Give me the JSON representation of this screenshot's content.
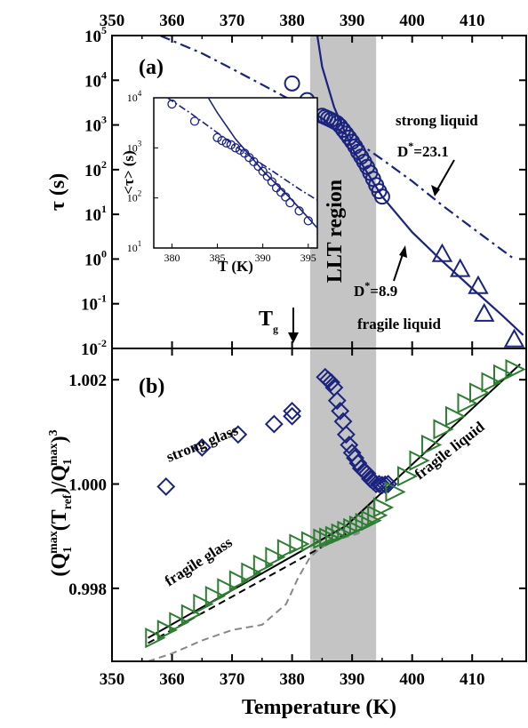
{
  "chart_data": [
    {
      "id": "a",
      "type": "scatter",
      "panel_label": "(a)",
      "xlabel": "",
      "ylabel": "τ (s)",
      "x_scale": "linear",
      "y_scale": "log",
      "xlim": [
        350,
        419
      ],
      "ylim": [
        0.01,
        100000
      ],
      "x_ticks": [
        "350",
        "360",
        "370",
        "380",
        "390",
        "400",
        "410"
      ],
      "y_ticks": [
        {
          "base": "10",
          "exp": "5",
          "value": 100000
        },
        {
          "base": "10",
          "exp": "4",
          "value": 10000
        },
        {
          "base": "10",
          "exp": "3",
          "value": 1000
        },
        {
          "base": "10",
          "exp": "2",
          "value": 100
        },
        {
          "base": "10",
          "exp": "1",
          "value": 10
        },
        {
          "base": "10",
          "exp": "0",
          "value": 1
        },
        {
          "base": "10",
          "exp": "-1",
          "value": 0.1
        },
        {
          "base": "10",
          "exp": "-2",
          "value": 0.01
        }
      ],
      "shaded_region": {
        "x": [
          383,
          394
        ],
        "label": "LLT region"
      },
      "series": [
        {
          "marker": "circle",
          "color": "#1a237e",
          "points": [
            [
              380,
              8500
            ],
            [
              382.5,
              3600
            ],
            [
              385,
              1600
            ],
            [
              385.5,
              1500
            ],
            [
              386,
              1400
            ],
            [
              386.5,
              1300
            ],
            [
              387,
              1200
            ],
            [
              387.5,
              1100
            ],
            [
              388,
              950
            ],
            [
              388.5,
              780
            ],
            [
              389,
              640
            ],
            [
              389.5,
              520
            ],
            [
              390,
              420
            ],
            [
              390.5,
              330
            ],
            [
              391,
              250
            ],
            [
              391.5,
              195
            ],
            [
              392,
              150
            ],
            [
              392.5,
              115
            ],
            [
              393,
              85
            ],
            [
              393.5,
              62
            ],
            [
              394,
              45
            ],
            [
              394.5,
              33
            ],
            [
              395,
              25
            ]
          ]
        },
        {
          "marker": "triangle",
          "color": "#1a237e",
          "points": [
            [
              405,
              1.3
            ],
            [
              408,
              0.6
            ],
            [
              411,
              0.25
            ],
            [
              412,
              0.06
            ],
            [
              417,
              0.016
            ]
          ]
        }
      ],
      "fits": [
        {
          "style": "solid",
          "color": "#1a237e",
          "points": [
            [
              384.2,
              100000
            ],
            [
              385,
              20000
            ],
            [
              387,
              2500
            ],
            [
              390,
              300
            ],
            [
              395,
              25
            ],
            [
              400,
              4
            ],
            [
              405,
              0.9
            ],
            [
              410,
              0.22
            ],
            [
              415,
              0.055
            ],
            [
              418.5,
              0.02
            ]
          ]
        },
        {
          "style": "dash-dot",
          "color": "#1a237e",
          "points": [
            [
              358,
              100000
            ],
            [
              365,
              40000
            ],
            [
              370,
              18000
            ],
            [
              375,
              8000
            ],
            [
              380,
              3500
            ],
            [
              385,
              1400
            ],
            [
              390,
              500
            ],
            [
              395,
              170
            ],
            [
              400,
              55
            ],
            [
              405,
              16
            ],
            [
              410,
              5
            ],
            [
              417,
              1
            ]
          ]
        }
      ],
      "annotations": [
        {
          "text": "strong liquid"
        },
        {
          "text": "D",
          "sup": "*",
          "after": "=23.1"
        },
        {
          "text": "D",
          "sup": "*",
          "after": "=8.9"
        },
        {
          "text": "fragile liquid"
        },
        {
          "text": "T",
          "sub": "g",
          "value": 380
        }
      ],
      "inset": {
        "xlabel": "T (K)",
        "ylabel": "<τ> (s)",
        "xlim": [
          378,
          396
        ],
        "ylim": [
          10,
          10000
        ],
        "x_ticks": [
          "380",
          "385",
          "390",
          "395"
        ],
        "y_ticks": [
          {
            "base": "10",
            "exp": "4",
            "value": 10000
          },
          {
            "base": "10",
            "exp": "3",
            "value": 1000
          },
          {
            "base": "10",
            "exp": "2",
            "value": 100
          },
          {
            "base": "10",
            "exp": "1",
            "value": 10
          }
        ],
        "points": [
          [
            380,
            7500
          ],
          [
            382.5,
            3400
          ],
          [
            385,
            1600
          ],
          [
            385.5,
            1400
          ],
          [
            386,
            1250
          ],
          [
            386.5,
            1150
          ],
          [
            387,
            1000
          ],
          [
            387.5,
            900
          ],
          [
            388,
            780
          ],
          [
            388.5,
            640
          ],
          [
            389,
            530
          ],
          [
            389.5,
            430
          ],
          [
            390,
            340
          ],
          [
            390.5,
            270
          ],
          [
            391,
            210
          ],
          [
            391.5,
            160
          ],
          [
            392,
            130
          ],
          [
            392.5,
            105
          ],
          [
            393,
            80
          ],
          [
            394,
            55
          ],
          [
            395,
            35
          ]
        ],
        "fits": [
          {
            "style": "solid",
            "points": [
              [
                384,
                10000
              ],
              [
                385,
                5000
              ],
              [
                387,
                1500
              ],
              [
                390,
                350
              ],
              [
                393,
                100
              ],
              [
                395,
                40
              ],
              [
                396,
                25
              ]
            ]
          },
          {
            "style": "dash-dot",
            "points": [
              [
                379.5,
                10000
              ],
              [
                382,
                5000
              ],
              [
                385,
                2000
              ],
              [
                388,
                800
              ],
              [
                391,
                350
              ],
              [
                394,
                150
              ],
              [
                396,
                90
              ]
            ]
          }
        ]
      }
    },
    {
      "id": "b",
      "type": "scatter",
      "panel_label": "(b)",
      "xlabel": "Temperature (K)",
      "ylabel": "(Q1max(Tref)/Q1max)3",
      "xlim": [
        350,
        419
      ],
      "ylim": [
        0.9966,
        1.0026
      ],
      "x_ticks": [
        "350",
        "360",
        "370",
        "380",
        "390",
        "400",
        "410"
      ],
      "y_ticks": [
        "0.998",
        "1.000",
        "1.002"
      ],
      "series": [
        {
          "marker": "diamond",
          "color": "#1a237e",
          "points": [
            [
              359,
              999.95
            ],
            [
              365,
              1000.7
            ],
            [
              371,
              1000.95
            ],
            [
              377,
              1001.15
            ],
            [
              380,
              1001.3
            ],
            [
              380,
              1001.4
            ],
            [
              385.5,
              1002.05
            ],
            [
              386,
              1002.0
            ],
            [
              386.5,
              1001.95
            ],
            [
              387,
              1001.85
            ],
            [
              387.5,
              1001.6
            ],
            [
              388,
              1001.4
            ],
            [
              388.5,
              1001.2
            ],
            [
              389,
              1000.95
            ],
            [
              389.5,
              1000.75
            ],
            [
              390,
              1000.6
            ],
            [
              390.5,
              1000.5
            ],
            [
              391,
              1000.4
            ],
            [
              391.5,
              1000.3
            ],
            [
              392,
              1000.25
            ],
            [
              392.5,
              1000.2
            ],
            [
              393,
              1000.1
            ],
            [
              393.5,
              1000.05
            ],
            [
              394,
              1000.0
            ],
            [
              394.5,
              1000.0
            ],
            [
              395,
              999.98
            ],
            [
              395.5,
              999.99
            ],
            [
              396,
              1000.0
            ]
          ]
        },
        {
          "marker": "triangle-right",
          "color": "#2e7d32",
          "points": [
            [
              357,
              997.05
            ],
            [
              359,
              997.2
            ],
            [
              361,
              997.35
            ],
            [
              363,
              997.5
            ],
            [
              365,
              997.7
            ],
            [
              367,
              997.85
            ],
            [
              369,
              998.0
            ],
            [
              371,
              998.15
            ],
            [
              373,
              998.3
            ],
            [
              375,
              998.45
            ],
            [
              377,
              998.6
            ],
            [
              379,
              998.75
            ],
            [
              381,
              998.85
            ],
            [
              383,
              998.9
            ],
            [
              385,
              998.95
            ],
            [
              386,
              998.97
            ],
            [
              387,
              999.0
            ],
            [
              388,
              999.05
            ],
            [
              389,
              999.1
            ],
            [
              390,
              999.15
            ],
            [
              391,
              999.2
            ],
            [
              392,
              999.25
            ],
            [
              393,
              999.3
            ],
            [
              394,
              999.4
            ],
            [
              395,
              999.55
            ],
            [
              397,
              999.85
            ],
            [
              399,
              1000.15
            ],
            [
              401,
              1000.45
            ],
            [
              403,
              1000.75
            ],
            [
              405,
              1001.05
            ],
            [
              407,
              1001.3
            ],
            [
              409,
              1001.55
            ],
            [
              411,
              1001.75
            ],
            [
              413,
              1001.95
            ],
            [
              415,
              1002.1
            ],
            [
              417,
              1002.2
            ]
          ]
        }
      ],
      "fits": [
        {
          "style": "solid",
          "color": "#000000",
          "points": [
            [
              356,
              997.05
            ],
            [
              389,
              999.2
            ],
            [
              418,
              1002.3
            ]
          ]
        },
        {
          "style": "dash",
          "color": "#000000",
          "points": [
            [
              356,
              996.95
            ],
            [
              389,
              999.05
            ]
          ]
        },
        {
          "style": "dash",
          "color": "#888888",
          "points": [
            [
              356,
              996.55
            ],
            [
              360,
              996.75
            ],
            [
              365,
              997.0
            ],
            [
              370,
              997.2
            ],
            [
              375,
              997.3
            ],
            [
              379,
              997.7
            ],
            [
              381,
              998.2
            ],
            [
              383,
              998.6
            ],
            [
              385,
              998.8
            ],
            [
              388,
              998.95
            ],
            [
              391,
              999.05
            ],
            [
              393,
              999.3
            ]
          ]
        }
      ],
      "annotations": [
        {
          "text": "strong glass"
        },
        {
          "text": "fragile liquid"
        },
        {
          "text": "fragile glass"
        }
      ]
    }
  ],
  "ylabel_b": {
    "a": "(Q",
    "b": "1",
    "c": "max",
    "d": "(T",
    "e": "ref",
    "f": ")/Q",
    "g": "1",
    "h": "max",
    "i": ")",
    "j": "3"
  }
}
